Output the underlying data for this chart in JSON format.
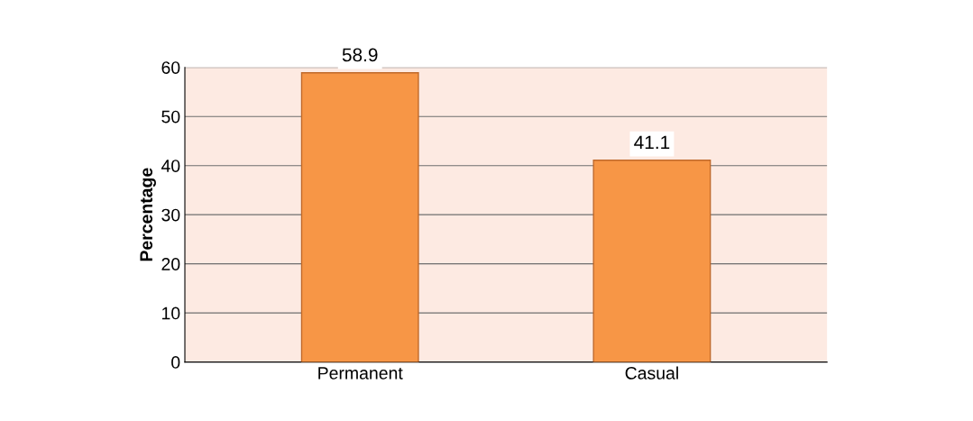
{
  "chart_data": {
    "type": "bar",
    "ylabel": "Percentage",
    "categories": [
      "Permanent",
      "Casual"
    ],
    "values": [
      58.9,
      41.1
    ],
    "color": "#f79646",
    "ylim": [
      0,
      60
    ],
    "yticks": [
      0,
      10,
      20,
      30,
      40,
      50,
      60
    ],
    "grid": "y",
    "data_labels": true
  }
}
